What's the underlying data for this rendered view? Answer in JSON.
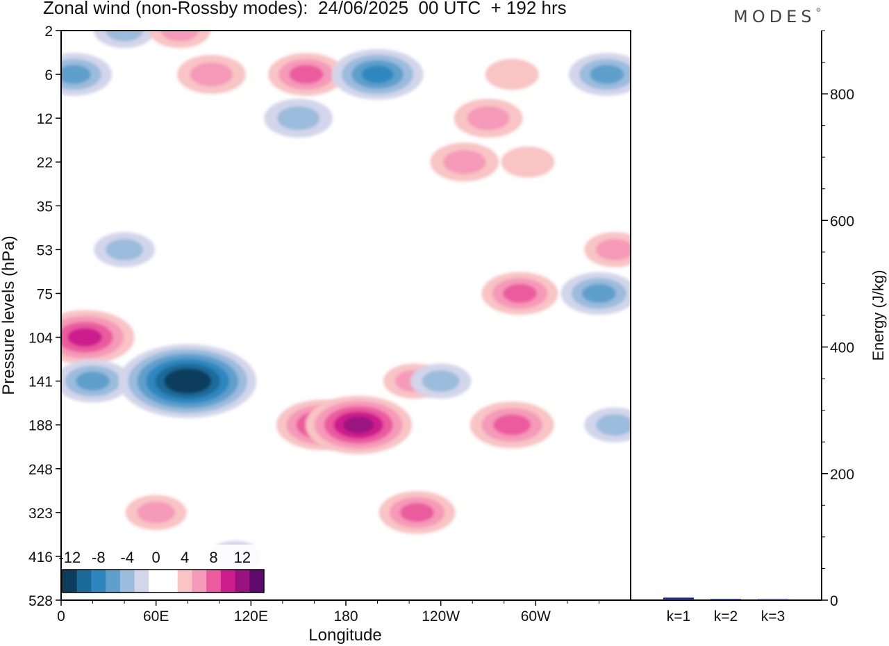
{
  "header": {
    "title": "Zonal wind (non-Rossby modes):  24/06/2025  00 UTC  + 192 hrs",
    "brand": "MODES"
  },
  "chart_data": [
    {
      "type": "heatmap",
      "title": "Zonal wind (non-Rossby modes):  24/06/2025  00 UTC  + 192 hrs",
      "xlabel": "Longitude",
      "ylabel": "Pressure levels (hPa)",
      "x_ticks": [
        "0",
        "60E",
        "120E",
        "180",
        "120W",
        "60W"
      ],
      "x_tick_degrees": [
        0,
        60,
        120,
        180,
        240,
        300
      ],
      "xlim": [
        0,
        360
      ],
      "y_ticks": [
        "2",
        "6",
        "12",
        "22",
        "35",
        "53",
        "75",
        "104",
        "141",
        "188",
        "248",
        "323",
        "416",
        "528"
      ],
      "y_scale": "level-index (top = 2 hPa, bottom = 528 hPa)",
      "colorbar": {
        "labels": [
          "-12",
          "-8",
          "-4",
          "0",
          "4",
          "8",
          "12"
        ],
        "label_positions": [
          0.5,
          2.5,
          4.5,
          6.5,
          8.5,
          10.5,
          12.5
        ],
        "colors": [
          "#0c3d5c",
          "#1a6b9a",
          "#2d87be",
          "#5f9fcc",
          "#9bbcdc",
          "#d3d6ea",
          "#ffffff",
          "#ffffff",
          "#f8c4c4",
          "#f59ab8",
          "#ea5c9e",
          "#cc1c8d",
          "#9a1280",
          "#5e0a6d"
        ]
      },
      "features": [
        {
          "lon": 40,
          "level": "2",
          "value": -4
        },
        {
          "lon": 75,
          "level": "2",
          "value": 4
        },
        {
          "lon": 8,
          "level": "6",
          "value": -6
        },
        {
          "lon": 95,
          "level": "6",
          "value": 5
        },
        {
          "lon": 155,
          "level": "6",
          "value": 6
        },
        {
          "lon": 200,
          "level": "6",
          "value": -8
        },
        {
          "lon": 285,
          "level": "6",
          "value": 3
        },
        {
          "lon": 345,
          "level": "6",
          "value": -6
        },
        {
          "lon": 150,
          "level": "12",
          "value": -5
        },
        {
          "lon": 270,
          "level": "12",
          "value": 5
        },
        {
          "lon": 255,
          "level": "22",
          "value": 5
        },
        {
          "lon": 295,
          "level": "22",
          "value": 3
        },
        {
          "lon": 40,
          "level": "53",
          "value": -4
        },
        {
          "lon": 350,
          "level": "53",
          "value": 4
        },
        {
          "lon": 290,
          "level": "75",
          "value": 6
        },
        {
          "lon": 340,
          "level": "75",
          "value": -6
        },
        {
          "lon": 15,
          "level": "104",
          "value": 9
        },
        {
          "lon": 20,
          "level": "141",
          "value": -6
        },
        {
          "lon": 80,
          "level": "141",
          "value": -14
        },
        {
          "lon": 165,
          "level": "188",
          "value": 8
        },
        {
          "lon": 188,
          "level": "188",
          "value": 10
        },
        {
          "lon": 223,
          "level": "141",
          "value": 4
        },
        {
          "lon": 240,
          "level": "141",
          "value": -4
        },
        {
          "lon": 285,
          "level": "188",
          "value": 7
        },
        {
          "lon": 350,
          "level": "188",
          "value": -4
        },
        {
          "lon": 60,
          "level": "323",
          "value": 4
        },
        {
          "lon": 225,
          "level": "323",
          "value": 6
        },
        {
          "lon": 110,
          "level": "416",
          "value": -3
        }
      ]
    },
    {
      "type": "bar",
      "categories": [
        "k=1",
        "k=2",
        "k=3"
      ],
      "values": [
        4,
        2,
        1
      ],
      "ylabel": "Energy (J/kg)",
      "ylim": [
        0,
        900
      ],
      "y_ticks": [
        0,
        200,
        400,
        600,
        800
      ],
      "bar_color": "#1f2a80"
    }
  ]
}
